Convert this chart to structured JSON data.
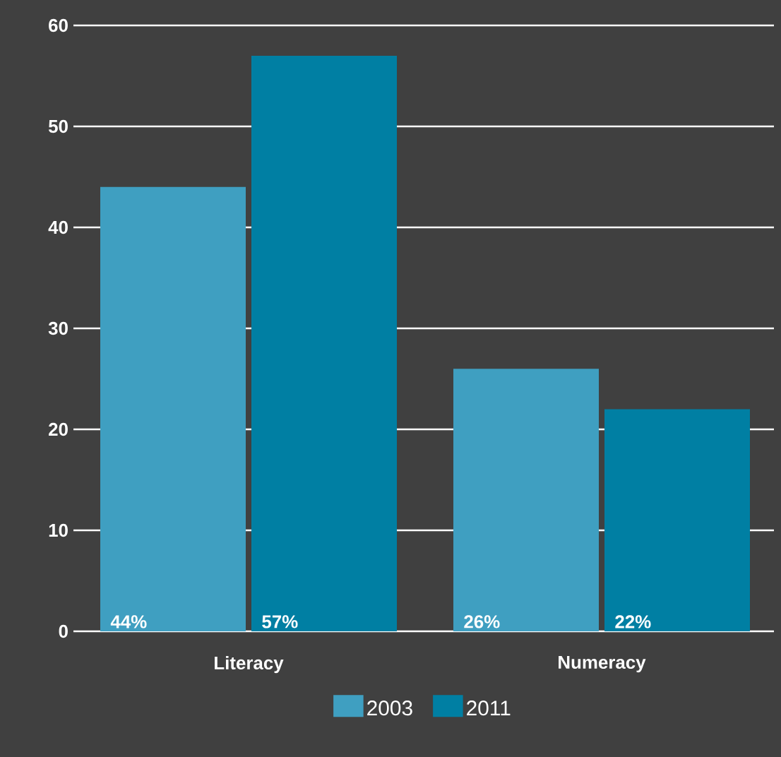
{
  "chart_data": {
    "type": "bar",
    "categories": [
      "Literacy",
      "Numeracy"
    ],
    "series": [
      {
        "name": "2003",
        "color": "#3f9fc1",
        "values": [
          44,
          26
        ],
        "value_labels": [
          "44%",
          "26%"
        ]
      },
      {
        "name": "2011",
        "color": "#007fa3",
        "values": [
          57,
          22
        ],
        "value_labels": [
          "57%",
          "22%"
        ]
      }
    ],
    "ylim": [
      0,
      60
    ],
    "yticks": [
      0,
      10,
      20,
      30,
      40,
      50,
      60
    ],
    "grid": "y",
    "legend": "bottom"
  }
}
